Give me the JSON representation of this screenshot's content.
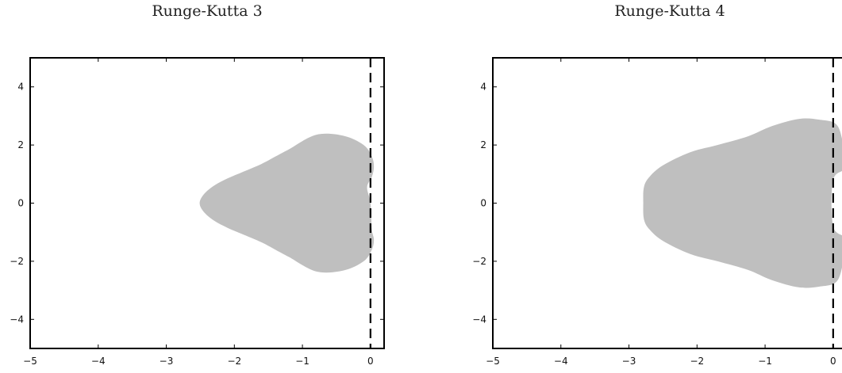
{
  "chart_data": [
    {
      "type": "area",
      "title": "Runge-Kutta 3",
      "xlabel": "",
      "ylabel": "",
      "xlim": [
        -5,
        0.2
      ],
      "ylim": [
        -5,
        5
      ],
      "xticks": [
        -5,
        -4,
        -3,
        -2,
        -1,
        0
      ],
      "yticks": [
        -4,
        -2,
        0,
        2,
        4
      ],
      "xtick_labels": [
        "−5",
        "−4",
        "−3",
        "−2",
        "−1",
        "0"
      ],
      "ytick_labels": [
        "−4",
        "−2",
        "0",
        "2",
        "4"
      ],
      "reference_line": {
        "x": 0,
        "style": "dashed"
      },
      "region_color": "#bfbfbf",
      "region_outline": {
        "x": [
          -2.51,
          -2.45,
          -2.3,
          -2.1,
          -1.9,
          -1.6,
          -1.4,
          -1.2,
          -0.8,
          -0.4,
          -0.1,
          0.02,
          0.05,
          0.02,
          -0.05,
          0.0,
          0.02,
          0.05,
          0.02,
          -0.1,
          -0.4,
          -0.8,
          -1.2,
          -1.4,
          -1.6,
          -1.9,
          -2.1,
          -2.3,
          -2.45
        ],
        "y": [
          0.0,
          0.3,
          0.6,
          0.85,
          1.05,
          1.35,
          1.6,
          1.85,
          2.35,
          2.32,
          2.0,
          1.6,
          1.25,
          0.9,
          0.55,
          0.0,
          -0.9,
          -1.25,
          -1.6,
          -2.0,
          -2.32,
          -2.35,
          -1.85,
          -1.6,
          -1.35,
          -1.05,
          -0.85,
          -0.6,
          -0.3
        ]
      }
    },
    {
      "type": "area",
      "title": "Runge-Kutta 4",
      "xlabel": "",
      "ylabel": "",
      "xlim": [
        -5,
        0.2
      ],
      "ylim": [
        -5,
        5
      ],
      "xticks": [
        -5,
        -4,
        -3,
        -2,
        -1,
        0
      ],
      "yticks": [
        -4,
        -2,
        0,
        2,
        4
      ],
      "xtick_labels": [
        "−5",
        "−4",
        "−3",
        "−2",
        "−1",
        "0"
      ],
      "ytick_labels": [
        "−4",
        "−2",
        "0",
        "2",
        "4"
      ],
      "reference_line": {
        "x": 0,
        "style": "dashed"
      },
      "region_color": "#bfbfbf",
      "region_outline": {
        "x": [
          -2.79,
          -2.78,
          -2.7,
          -2.5,
          -2.1,
          -1.7,
          -1.25,
          -0.9,
          -0.5,
          -0.2,
          0.05,
          0.15,
          0.2,
          0.0,
          0.0,
          0.2,
          0.15,
          0.05,
          -0.2,
          -0.5,
          -0.9,
          -1.25,
          -1.7,
          -2.1,
          -2.5,
          -2.7,
          -2.78
        ],
        "y": [
          0.0,
          0.55,
          0.9,
          1.3,
          1.75,
          2.0,
          2.3,
          2.65,
          2.9,
          2.87,
          2.7,
          2.0,
          1.25,
          0.8,
          -0.8,
          -1.25,
          -2.0,
          -2.7,
          -2.87,
          -2.9,
          -2.65,
          -2.3,
          -2.0,
          -1.75,
          -1.3,
          -0.9,
          -0.55
        ]
      }
    }
  ]
}
